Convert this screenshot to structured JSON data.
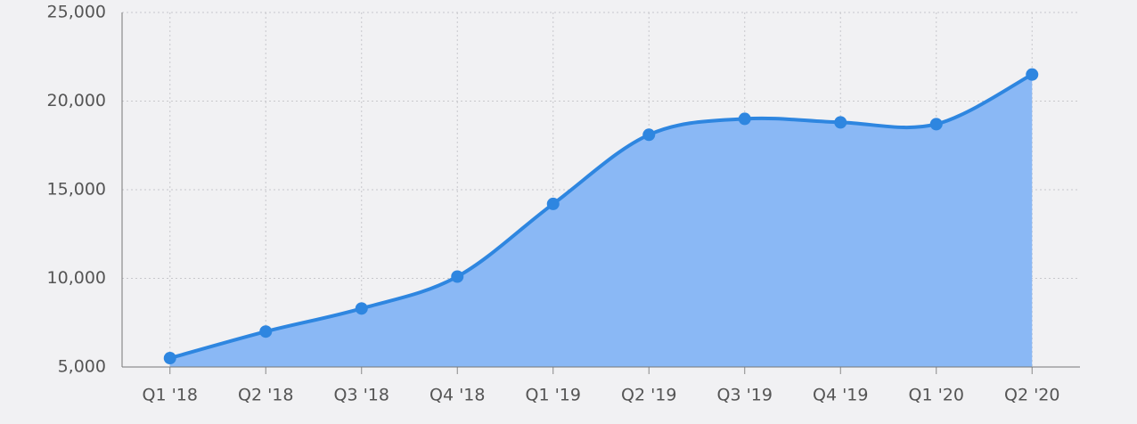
{
  "chart_data": {
    "type": "area",
    "categories": [
      "Q1 '18",
      "Q2 '18",
      "Q3 '18",
      "Q4 '18",
      "Q1 '19",
      "Q2 '19",
      "Q3 '19",
      "Q4 '19",
      "Q1 '20",
      "Q2 '20"
    ],
    "values": [
      5500,
      7000,
      8300,
      10100,
      14200,
      18100,
      19000,
      18800,
      18700,
      21500
    ],
    "color": "#2e86e0",
    "fill_color": "#8ab8f5",
    "ylim": [
      5000,
      25000
    ],
    "yticks": [
      {
        "value": 5000,
        "label": "5,000"
      },
      {
        "value": 10000,
        "label": "10,000"
      },
      {
        "value": 15000,
        "label": "15,000"
      },
      {
        "value": 20000,
        "label": "20,000"
      },
      {
        "value": 25000,
        "label": "25,000"
      }
    ],
    "grid": true
  }
}
